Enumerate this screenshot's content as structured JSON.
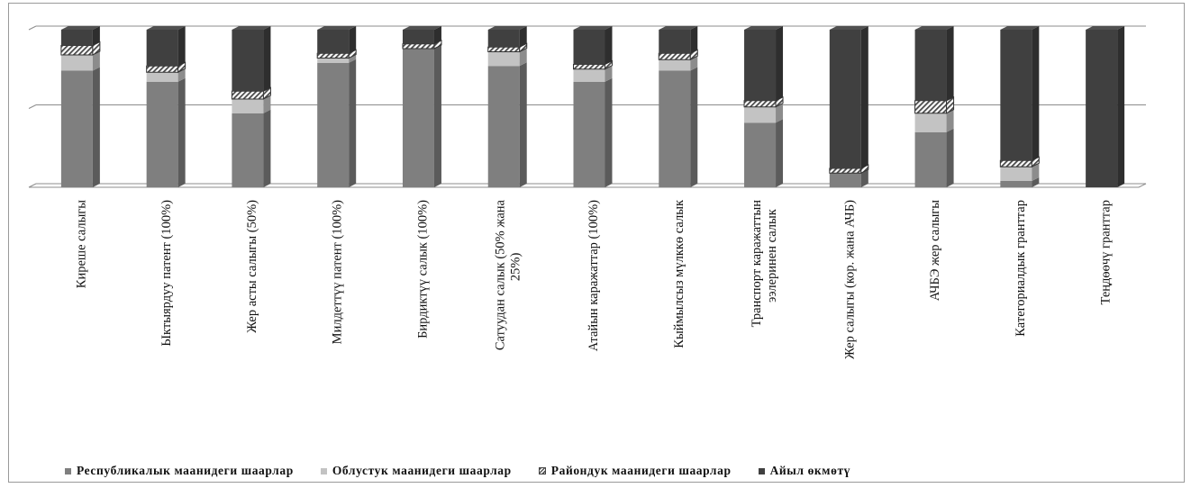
{
  "chart_data": {
    "type": "bar",
    "stacked": true,
    "percent_stacked": true,
    "three_d": true,
    "categories": [
      [
        "Киреше салыгы"
      ],
      [
        "Ыктыярдуу патент (100%)"
      ],
      [
        "Жер асты салыгы (50%)"
      ],
      [
        "Милдеттүү патент (100%)"
      ],
      [
        "Бирдиктүү салык (100%)"
      ],
      [
        "Сатуудан салык (50% жана",
        "25%)"
      ],
      [
        "Атайын каражаттар (100%)"
      ],
      [
        "Кыймылсыз мүлккө салык"
      ],
      [
        "Транспорт каражаттын",
        "ээлеринен салык"
      ],
      [
        "Жер салыгы (кор. жана АЧБ)"
      ],
      [
        "АЧБЭ жер салыгы"
      ],
      [
        "Категориалдык гранттар"
      ],
      [
        "Теңдөөчү гранттар"
      ]
    ],
    "series": [
      {
        "name": "Республикалык маанидеги шаарлар",
        "values": [
          74,
          67,
          47,
          79,
          88,
          77,
          67,
          74,
          41,
          9,
          35,
          4,
          0
        ]
      },
      {
        "name": "Облустук маанидеги шаарлар",
        "values": [
          10,
          6,
          9,
          3,
          0,
          9,
          8,
          7,
          10,
          0,
          12,
          9,
          0
        ]
      },
      {
        "name": "Райондук маанидеги шаарлар",
        "values": [
          6,
          4,
          5,
          3,
          3,
          3,
          3,
          4,
          4,
          3,
          8,
          4,
          0
        ]
      },
      {
        "name": "Айыл өкмөтү",
        "values": [
          10,
          23,
          39,
          15,
          9,
          11,
          22,
          15,
          45,
          88,
          45,
          83,
          100
        ]
      }
    ],
    "ylim": [
      0,
      100
    ],
    "gridlines": [
      0,
      50,
      100
    ],
    "grid": true,
    "legend": "bottom",
    "colors": {
      "Республикалык маанидеги шаарлар": "#7f7f7f",
      "Облустук маанидеги шаарлар": "#c3c3c3",
      "Райондук маанидеги шаарлар": "hatched",
      "Айыл өкмөтү": "#404040"
    }
  },
  "legend": {
    "items": [
      "Республикалык маанидеги шаарлар",
      "Облустук маанидеги шаарлар",
      "Райондук маанидеги шаарлар",
      "Айыл өкмөтү"
    ]
  }
}
